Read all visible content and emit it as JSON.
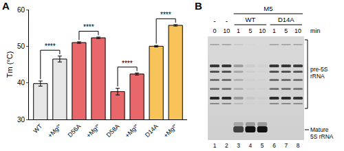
{
  "chart_data": {
    "type": "bar",
    "panel_label": "A",
    "y_label": "Tm (°C)",
    "categories": [
      "WT",
      "+Mg²⁺",
      "D56A",
      "+Mg²⁺",
      "D58A",
      "+Mg²⁺",
      "D14A",
      "+Mg²⁺"
    ],
    "values": [
      39.8,
      46.5,
      51.0,
      52.3,
      37.6,
      42.4,
      50.0,
      55.7
    ],
    "errors": [
      0.7,
      0.8,
      0.2,
      0.2,
      0.9,
      0.3,
      0.2,
      0.2
    ],
    "colors": [
      "#e6e6e6",
      "#e6e6e6",
      "#e8676a",
      "#e8676a",
      "#e8676a",
      "#e8676a",
      "#f8c45a",
      "#f8c45a"
    ],
    "significance": [
      "****",
      "****",
      "****",
      "****"
    ],
    "ylim": [
      30,
      60
    ],
    "yticks": [
      30,
      40,
      50,
      60
    ],
    "grid": false
  },
  "gel": {
    "panel_label": "B",
    "treatment": "M5",
    "controls": [
      "-",
      "-"
    ],
    "groups": [
      "WT",
      "D14A"
    ],
    "times": [
      0,
      10,
      1,
      5,
      10,
      1,
      5,
      10
    ],
    "time_unit": "min",
    "lane_numbers": [
      1,
      2,
      3,
      4,
      5,
      6,
      7,
      8
    ],
    "band_labels": [
      "pre-5S rRNA",
      "Mature 5S rRNA"
    ]
  }
}
